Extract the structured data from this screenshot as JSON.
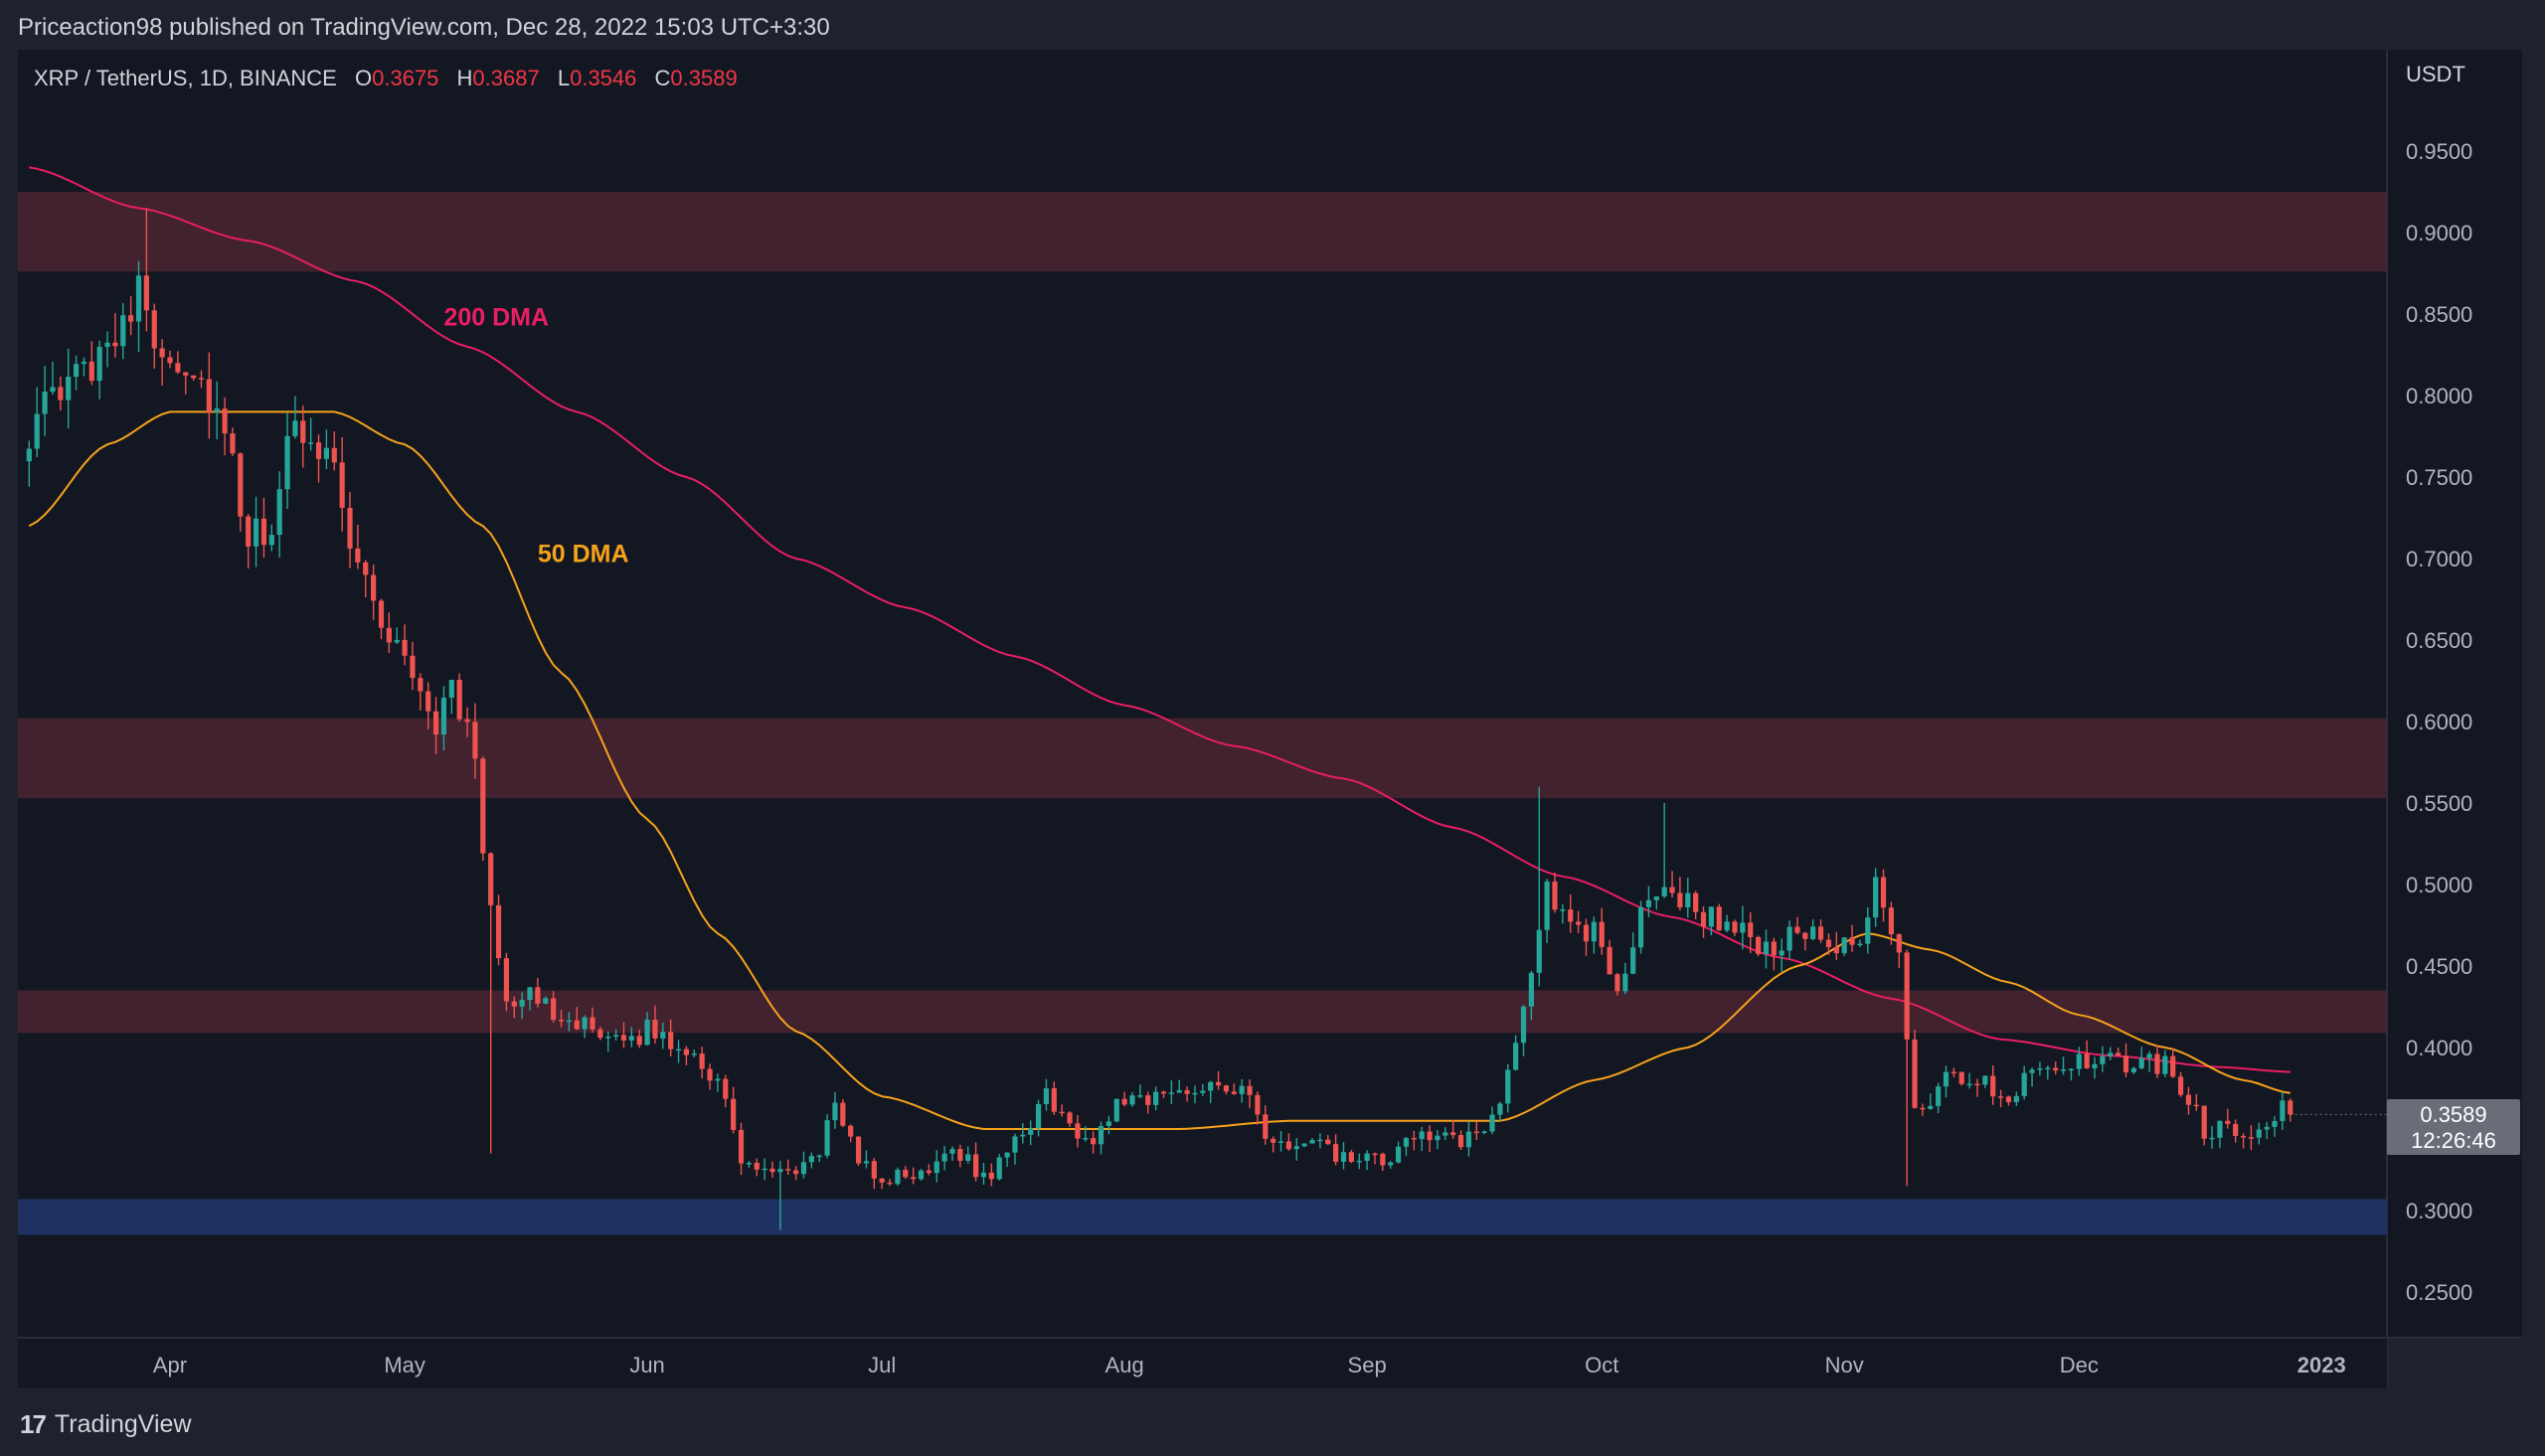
{
  "publisher_line": "Priceaction98 published on TradingView.com, Dec 28, 2022 15:03 UTC+3:30",
  "symbol": {
    "name": "XRP / TetherUS, 1D, BINANCE",
    "o_label": "O",
    "o_value": "0.3675",
    "h_label": "H",
    "h_value": "0.3687",
    "l_label": "L",
    "l_value": "0.3546",
    "c_label": "C",
    "c_value": "0.3589"
  },
  "currency": "USDT",
  "last_price": "0.3589",
  "countdown": "12:26:46",
  "footer_brand": "TradingView",
  "colors": {
    "background": "#131722",
    "up": "#26a69a",
    "down": "#ef5350",
    "ma200": "#e91e63",
    "ma50": "#f7a21b",
    "resistance_zone": "#4a2530",
    "support_zone": "#1f3366"
  },
  "chart_data": {
    "type": "candlestick",
    "ylim": [
      0.22,
      0.99
    ],
    "y_ticks": [
      "0.9500",
      "0.9000",
      "0.8500",
      "0.8000",
      "0.7500",
      "0.7000",
      "0.6500",
      "0.6000",
      "0.5500",
      "0.5000",
      "0.4500",
      "0.4000",
      "0.3000",
      "0.2500"
    ],
    "x_ticks": [
      "Apr",
      "May",
      "Jun",
      "Jul",
      "Aug",
      "Sep",
      "Oct",
      "Nov",
      "Dec",
      "2023"
    ],
    "annotations": [
      {
        "text": "200 DMA",
        "color": "#e91e63",
        "date": "2022-05-06",
        "price": 0.843
      },
      {
        "text": "50 DMA",
        "color": "#f7a21b",
        "date": "2022-05-18",
        "price": 0.698
      }
    ],
    "zones": [
      {
        "type": "resistance",
        "from": 0.876,
        "to": 0.925
      },
      {
        "type": "resistance",
        "from": 0.553,
        "to": 0.602
      },
      {
        "type": "resistance",
        "from": 0.409,
        "to": 0.435
      },
      {
        "type": "support",
        "from": 0.285,
        "to": 0.307
      }
    ],
    "price_anchors": [
      [
        "2022-03-14",
        0.78
      ],
      [
        "2022-03-18",
        0.8
      ],
      [
        "2022-03-22",
        0.82
      ],
      [
        "2022-03-24",
        0.84
      ],
      [
        "2022-03-28",
        0.86
      ],
      [
        "2022-03-31",
        0.83
      ],
      [
        "2022-04-03",
        0.82
      ],
      [
        "2022-04-06",
        0.8
      ],
      [
        "2022-04-08",
        0.77
      ],
      [
        "2022-04-11",
        0.71
      ],
      [
        "2022-04-14",
        0.72
      ],
      [
        "2022-04-17",
        0.78
      ],
      [
        "2022-04-21",
        0.77
      ],
      [
        "2022-04-25",
        0.7
      ],
      [
        "2022-04-28",
        0.66
      ],
      [
        "2022-05-02",
        0.63
      ],
      [
        "2022-05-05",
        0.6
      ],
      [
        "2022-05-07",
        0.62
      ],
      [
        "2022-05-09",
        0.6
      ],
      [
        "2022-05-12",
        0.49
      ],
      [
        "2022-05-14",
        0.43
      ],
      [
        "2022-05-17",
        0.43
      ],
      [
        "2022-05-22",
        0.42
      ],
      [
        "2022-05-27",
        0.4
      ],
      [
        "2022-06-01",
        0.41
      ],
      [
        "2022-06-06",
        0.4
      ],
      [
        "2022-06-10",
        0.38
      ],
      [
        "2022-06-13",
        0.33
      ],
      [
        "2022-06-18",
        0.32
      ],
      [
        "2022-06-22",
        0.33
      ],
      [
        "2022-06-25",
        0.36
      ],
      [
        "2022-06-30",
        0.32
      ],
      [
        "2022-07-05",
        0.32
      ],
      [
        "2022-07-10",
        0.34
      ],
      [
        "2022-07-14",
        0.32
      ],
      [
        "2022-07-18",
        0.34
      ],
      [
        "2022-07-22",
        0.37
      ],
      [
        "2022-07-27",
        0.34
      ],
      [
        "2022-08-01",
        0.37
      ],
      [
        "2022-08-06",
        0.37
      ],
      [
        "2022-08-12",
        0.38
      ],
      [
        "2022-08-17",
        0.37
      ],
      [
        "2022-08-19",
        0.34
      ],
      [
        "2022-08-25",
        0.34
      ],
      [
        "2022-08-30",
        0.33
      ],
      [
        "2022-09-04",
        0.33
      ],
      [
        "2022-09-08",
        0.35
      ],
      [
        "2022-09-13",
        0.34
      ],
      [
        "2022-09-16",
        0.35
      ],
      [
        "2022-09-19",
        0.38
      ],
      [
        "2022-09-22",
        0.45
      ],
      [
        "2022-09-24",
        0.5
      ],
      [
        "2022-09-27",
        0.47
      ],
      [
        "2022-09-30",
        0.47
      ],
      [
        "2022-10-03",
        0.44
      ],
      [
        "2022-10-08",
        0.5
      ],
      [
        "2022-10-11",
        0.49
      ],
      [
        "2022-10-15",
        0.48
      ],
      [
        "2022-10-19",
        0.47
      ],
      [
        "2022-10-22",
        0.46
      ],
      [
        "2022-10-26",
        0.47
      ],
      [
        "2022-10-31",
        0.46
      ],
      [
        "2022-11-03",
        0.46
      ],
      [
        "2022-11-05",
        0.5
      ],
      [
        "2022-11-08",
        0.46
      ],
      [
        "2022-11-10",
        0.36
      ],
      [
        "2022-11-14",
        0.38
      ],
      [
        "2022-11-18",
        0.38
      ],
      [
        "2022-11-22",
        0.37
      ],
      [
        "2022-11-25",
        0.39
      ],
      [
        "2022-11-29",
        0.39
      ],
      [
        "2022-12-03",
        0.39
      ],
      [
        "2022-12-08",
        0.39
      ],
      [
        "2022-12-12",
        0.39
      ],
      [
        "2022-12-15",
        0.37
      ],
      [
        "2022-12-17",
        0.35
      ],
      [
        "2022-12-21",
        0.35
      ],
      [
        "2022-12-24",
        0.35
      ],
      [
        "2022-12-26",
        0.36
      ],
      [
        "2022-12-28",
        0.3589
      ]
    ],
    "ma50_anchors": [
      [
        "2022-03-14",
        0.72
      ],
      [
        "2022-03-24",
        0.77
      ],
      [
        "2022-04-01",
        0.79
      ],
      [
        "2022-04-12",
        0.79
      ],
      [
        "2022-04-22",
        0.79
      ],
      [
        "2022-05-01",
        0.77
      ],
      [
        "2022-05-11",
        0.72
      ],
      [
        "2022-05-21",
        0.63
      ],
      [
        "2022-06-01",
        0.54
      ],
      [
        "2022-06-10",
        0.47
      ],
      [
        "2022-06-20",
        0.41
      ],
      [
        "2022-07-01",
        0.37
      ],
      [
        "2022-07-14",
        0.35
      ],
      [
        "2022-07-25",
        0.35
      ],
      [
        "2022-08-08",
        0.35
      ],
      [
        "2022-08-22",
        0.355
      ],
      [
        "2022-09-05",
        0.355
      ],
      [
        "2022-09-18",
        0.355
      ],
      [
        "2022-09-30",
        0.38
      ],
      [
        "2022-10-12",
        0.4
      ],
      [
        "2022-10-26",
        0.45
      ],
      [
        "2022-11-04",
        0.47
      ],
      [
        "2022-11-12",
        0.46
      ],
      [
        "2022-11-22",
        0.44
      ],
      [
        "2022-12-01",
        0.42
      ],
      [
        "2022-12-12",
        0.4
      ],
      [
        "2022-12-22",
        0.38
      ],
      [
        "2022-12-28",
        0.372
      ]
    ],
    "ma200_anchors": [
      [
        "2022-03-14",
        0.94
      ],
      [
        "2022-03-28",
        0.915
      ],
      [
        "2022-04-11",
        0.895
      ],
      [
        "2022-04-25",
        0.87
      ],
      [
        "2022-05-09",
        0.83
      ],
      [
        "2022-05-23",
        0.79
      ],
      [
        "2022-06-06",
        0.75
      ],
      [
        "2022-06-20",
        0.7
      ],
      [
        "2022-07-04",
        0.67
      ],
      [
        "2022-07-18",
        0.64
      ],
      [
        "2022-08-01",
        0.61
      ],
      [
        "2022-08-15",
        0.585
      ],
      [
        "2022-08-29",
        0.565
      ],
      [
        "2022-09-12",
        0.535
      ],
      [
        "2022-09-26",
        0.505
      ],
      [
        "2022-10-10",
        0.48
      ],
      [
        "2022-10-24",
        0.455
      ],
      [
        "2022-11-07",
        0.43
      ],
      [
        "2022-11-21",
        0.405
      ],
      [
        "2022-12-05",
        0.395
      ],
      [
        "2022-12-19",
        0.388
      ],
      [
        "2022-12-28",
        0.385
      ]
    ],
    "peaks": [
      {
        "date": "2022-03-29",
        "high": 0.915
      },
      {
        "date": "2022-09-23",
        "high": 0.56
      },
      {
        "date": "2022-10-09",
        "high": 0.55
      },
      {
        "date": "2022-11-05",
        "high": 0.51
      }
    ],
    "troughs": [
      {
        "date": "2022-06-18",
        "low": 0.288
      },
      {
        "date": "2022-11-09",
        "low": 0.315
      },
      {
        "date": "2022-05-12",
        "low": 0.335
      }
    ]
  }
}
